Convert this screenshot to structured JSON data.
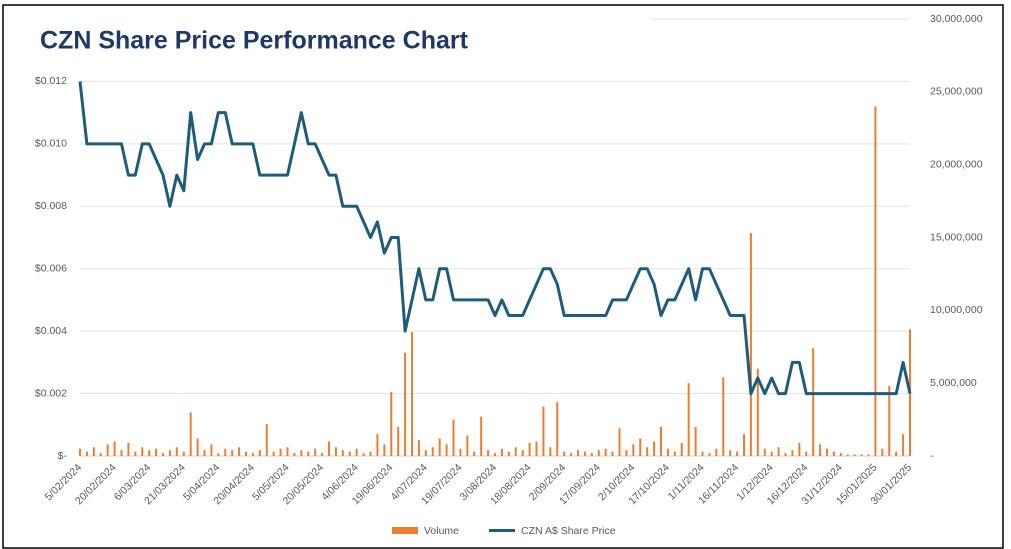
{
  "chart_data": {
    "type": "combo",
    "title": "CZN Share Price Performance Chart",
    "categories": [
      "5/02/2024",
      null,
      null,
      null,
      null,
      "20/02/2024",
      null,
      null,
      null,
      null,
      "6/03/2024",
      null,
      null,
      null,
      null,
      "21/03/2024",
      null,
      null,
      null,
      null,
      "5/04/2024",
      null,
      null,
      null,
      null,
      "20/04/2024",
      null,
      null,
      null,
      null,
      "5/05/2024",
      null,
      null,
      null,
      null,
      "20/05/2024",
      null,
      null,
      null,
      null,
      "4/06/2024",
      null,
      null,
      null,
      null,
      "19/06/2024",
      null,
      null,
      null,
      null,
      "4/07/2024",
      null,
      null,
      null,
      null,
      "19/07/2024",
      null,
      null,
      null,
      null,
      "3/08/2024",
      null,
      null,
      null,
      null,
      "18/08/2024",
      null,
      null,
      null,
      null,
      "2/09/2024",
      null,
      null,
      null,
      null,
      "17/09/2024",
      null,
      null,
      null,
      null,
      "2/10/2024",
      null,
      null,
      null,
      null,
      "17/10/2024",
      null,
      null,
      null,
      null,
      "1/11/2024",
      null,
      null,
      null,
      null,
      "16/11/2024",
      null,
      null,
      null,
      null,
      "1/12/2024",
      null,
      null,
      null,
      null,
      "16/12/2024",
      null,
      null,
      null,
      null,
      "31/12/2024",
      null,
      null,
      null,
      null,
      "15/01/2025",
      null,
      null,
      null,
      null,
      "30/01/2025"
    ],
    "series": [
      {
        "name": "Volume",
        "type": "bar",
        "axis": "y2",
        "color": "#ed7d31",
        "values": [
          500000,
          300000,
          600000,
          200000,
          800000,
          1000000,
          400000,
          900000,
          300000,
          600000,
          400000,
          500000,
          200000,
          400000,
          600000,
          300000,
          3000000,
          1200000,
          400000,
          800000,
          200000,
          500000,
          400000,
          600000,
          300000,
          200000,
          400000,
          2200000,
          300000,
          500000,
          600000,
          200000,
          400000,
          300000,
          500000,
          200000,
          1000000,
          600000,
          400000,
          300000,
          500000,
          200000,
          300000,
          1500000,
          800000,
          4400000,
          2000000,
          7100000,
          8500000,
          1100000,
          400000,
          600000,
          1200000,
          800000,
          2500000,
          500000,
          1400000,
          300000,
          2700000,
          400000,
          200000,
          500000,
          300000,
          600000,
          400000,
          900000,
          1000000,
          3400000,
          600000,
          3700000,
          300000,
          200000,
          400000,
          300000,
          200000,
          400000,
          500000,
          300000,
          1900000,
          400000,
          800000,
          1200000,
          600000,
          1000000,
          2000000,
          500000,
          300000,
          900000,
          5000000,
          2000000,
          300000,
          200000,
          500000,
          5400000,
          400000,
          300000,
          1500000,
          15300000,
          6000000,
          500000,
          300000,
          600000,
          200000,
          400000,
          900000,
          300000,
          7400000,
          800000,
          500000,
          300000,
          200000,
          100000,
          100000,
          100000,
          100000,
          24000000,
          500000,
          4800000,
          300000,
          1500000,
          8700000
        ]
      },
      {
        "name": "CZN A$ Share Price",
        "type": "line",
        "color": "#1f5c7a",
        "values": [
          0.012,
          0.01,
          0.01,
          0.01,
          0.01,
          0.01,
          0.01,
          0.009,
          0.009,
          0.01,
          0.01,
          0.0095,
          0.009,
          0.008,
          0.009,
          0.0085,
          0.011,
          0.0095,
          0.01,
          0.01,
          0.011,
          0.011,
          0.01,
          0.01,
          0.01,
          0.01,
          0.009,
          0.009,
          0.009,
          0.009,
          0.009,
          0.01,
          0.011,
          0.01,
          0.01,
          0.0095,
          0.009,
          0.009,
          0.008,
          0.008,
          0.008,
          0.0075,
          0.007,
          0.0075,
          0.0065,
          0.007,
          0.007,
          0.004,
          0.005,
          0.006,
          0.005,
          0.005,
          0.006,
          0.006,
          0.005,
          0.005,
          0.005,
          0.005,
          0.005,
          0.005,
          0.0045,
          0.005,
          0.0045,
          0.0045,
          0.0045,
          0.005,
          0.0055,
          0.006,
          0.006,
          0.0055,
          0.0045,
          0.0045,
          0.0045,
          0.0045,
          0.0045,
          0.0045,
          0.0045,
          0.005,
          0.005,
          0.005,
          0.0055,
          0.006,
          0.006,
          0.0055,
          0.0045,
          0.005,
          0.005,
          0.0055,
          0.006,
          0.005,
          0.006,
          0.006,
          0.0055,
          0.005,
          0.0045,
          0.0045,
          0.0045,
          0.002,
          0.0025,
          0.002,
          0.0025,
          0.002,
          0.002,
          0.003,
          0.003,
          0.002,
          0.002,
          0.002,
          0.002,
          0.002,
          0.002,
          0.002,
          0.002,
          0.002,
          0.002,
          0.002,
          0.002,
          0.002,
          0.002,
          0.003,
          0.002
        ]
      }
    ],
    "ylim": [
      0,
      0.014
    ],
    "yticks": [
      {
        "value": 0,
        "label": "$-"
      },
      {
        "value": 0.002,
        "label": "$0.002"
      },
      {
        "value": 0.004,
        "label": "$0.004"
      },
      {
        "value": 0.006,
        "label": "$0.006"
      },
      {
        "value": 0.008,
        "label": "$0.008"
      },
      {
        "value": 0.01,
        "label": "$0.010"
      },
      {
        "value": 0.012,
        "label": "$0.012"
      }
    ],
    "y2lim": [
      0,
      30000000
    ],
    "y2ticks": [
      {
        "value": 0,
        "label": "-"
      },
      {
        "value": 5000000,
        "label": "5,000,000"
      },
      {
        "value": 10000000,
        "label": "10,000,000"
      },
      {
        "value": 15000000,
        "label": "15,000,000"
      },
      {
        "value": 20000000,
        "label": "20,000,000"
      },
      {
        "value": 25000000,
        "label": "25,000,000"
      },
      {
        "value": 30000000,
        "label": "30,000,000"
      }
    ],
    "grid": true,
    "legend": "bottom"
  }
}
